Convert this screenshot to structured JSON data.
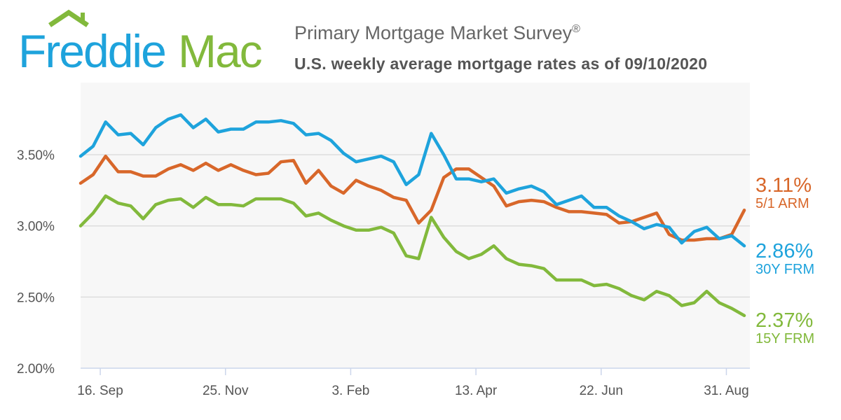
{
  "logo": {
    "text_a": "Freddie",
    "text_b": "Mac"
  },
  "header": {
    "title": "Primary Mortgage Market Survey",
    "title_mark": "®",
    "subtitle": "U.S. weekly average mortgage rates as of 09/10/2020"
  },
  "colors": {
    "arm": "#d8672a",
    "frm30": "#1ea3dc",
    "frm15": "#82b93c",
    "plot_bg": "#f7f7f7",
    "grid": "#dddddd"
  },
  "chart_data": {
    "type": "line",
    "title": "U.S. weekly average mortgage rates as of 09/10/2020",
    "ylim": [
      2.0,
      4.0
    ],
    "yticks": [
      2.0,
      2.5,
      3.0,
      3.5
    ],
    "ytick_labels": [
      "2.00%",
      "2.50%",
      "3.00%",
      "3.50%"
    ],
    "xtick_labels": [
      "16. Sep",
      "25. Nov",
      "3. Feb",
      "13. Apr",
      "22. Jun",
      "31. Aug"
    ],
    "xtick_week_offsets": [
      1.57,
      11.57,
      21.57,
      31.57,
      41.57,
      51.57
    ],
    "x_start": "2019-09-05",
    "x_step": "weekly",
    "grid": true,
    "series": [
      {
        "key": "arm",
        "name": "5/1 ARM",
        "last_label": "3.11%",
        "values": [
          3.3,
          3.36,
          3.49,
          3.38,
          3.38,
          3.35,
          3.35,
          3.4,
          3.43,
          3.39,
          3.44,
          3.39,
          3.43,
          3.39,
          3.36,
          3.37,
          3.45,
          3.46,
          3.3,
          3.39,
          3.28,
          3.23,
          3.32,
          3.28,
          3.25,
          3.2,
          3.18,
          3.02,
          3.11,
          3.34,
          3.4,
          3.4,
          3.34,
          3.28,
          3.14,
          3.17,
          3.18,
          3.17,
          3.13,
          3.1,
          3.1,
          3.09,
          3.08,
          3.02,
          3.03,
          3.06,
          3.09,
          2.94,
          2.9,
          2.9,
          2.91,
          2.91,
          2.94,
          3.11
        ]
      },
      {
        "key": "frm30",
        "name": "30Y FRM",
        "last_label": "2.86%",
        "values": [
          3.49,
          3.56,
          3.73,
          3.64,
          3.65,
          3.57,
          3.69,
          3.75,
          3.78,
          3.69,
          3.75,
          3.66,
          3.68,
          3.68,
          3.73,
          3.73,
          3.74,
          3.72,
          3.64,
          3.65,
          3.6,
          3.51,
          3.45,
          3.47,
          3.49,
          3.45,
          3.29,
          3.36,
          3.65,
          3.5,
          3.33,
          3.33,
          3.31,
          3.33,
          3.23,
          3.26,
          3.28,
          3.24,
          3.15,
          3.18,
          3.21,
          3.13,
          3.13,
          3.07,
          3.03,
          2.98,
          3.01,
          2.99,
          2.88,
          2.96,
          2.99,
          2.91,
          2.93,
          2.86
        ]
      },
      {
        "key": "frm15",
        "name": "15Y FRM",
        "last_label": "2.37%",
        "values": [
          3.0,
          3.09,
          3.21,
          3.16,
          3.14,
          3.05,
          3.15,
          3.18,
          3.19,
          3.13,
          3.2,
          3.15,
          3.15,
          3.14,
          3.19,
          3.19,
          3.19,
          3.16,
          3.07,
          3.09,
          3.04,
          3.0,
          2.97,
          2.97,
          2.99,
          2.95,
          2.79,
          2.77,
          3.06,
          2.92,
          2.82,
          2.77,
          2.8,
          2.86,
          2.77,
          2.73,
          2.72,
          2.7,
          2.62,
          2.62,
          2.62,
          2.58,
          2.59,
          2.56,
          2.51,
          2.48,
          2.54,
          2.51,
          2.44,
          2.46,
          2.54,
          2.46,
          2.42,
          2.37
        ]
      }
    ]
  }
}
